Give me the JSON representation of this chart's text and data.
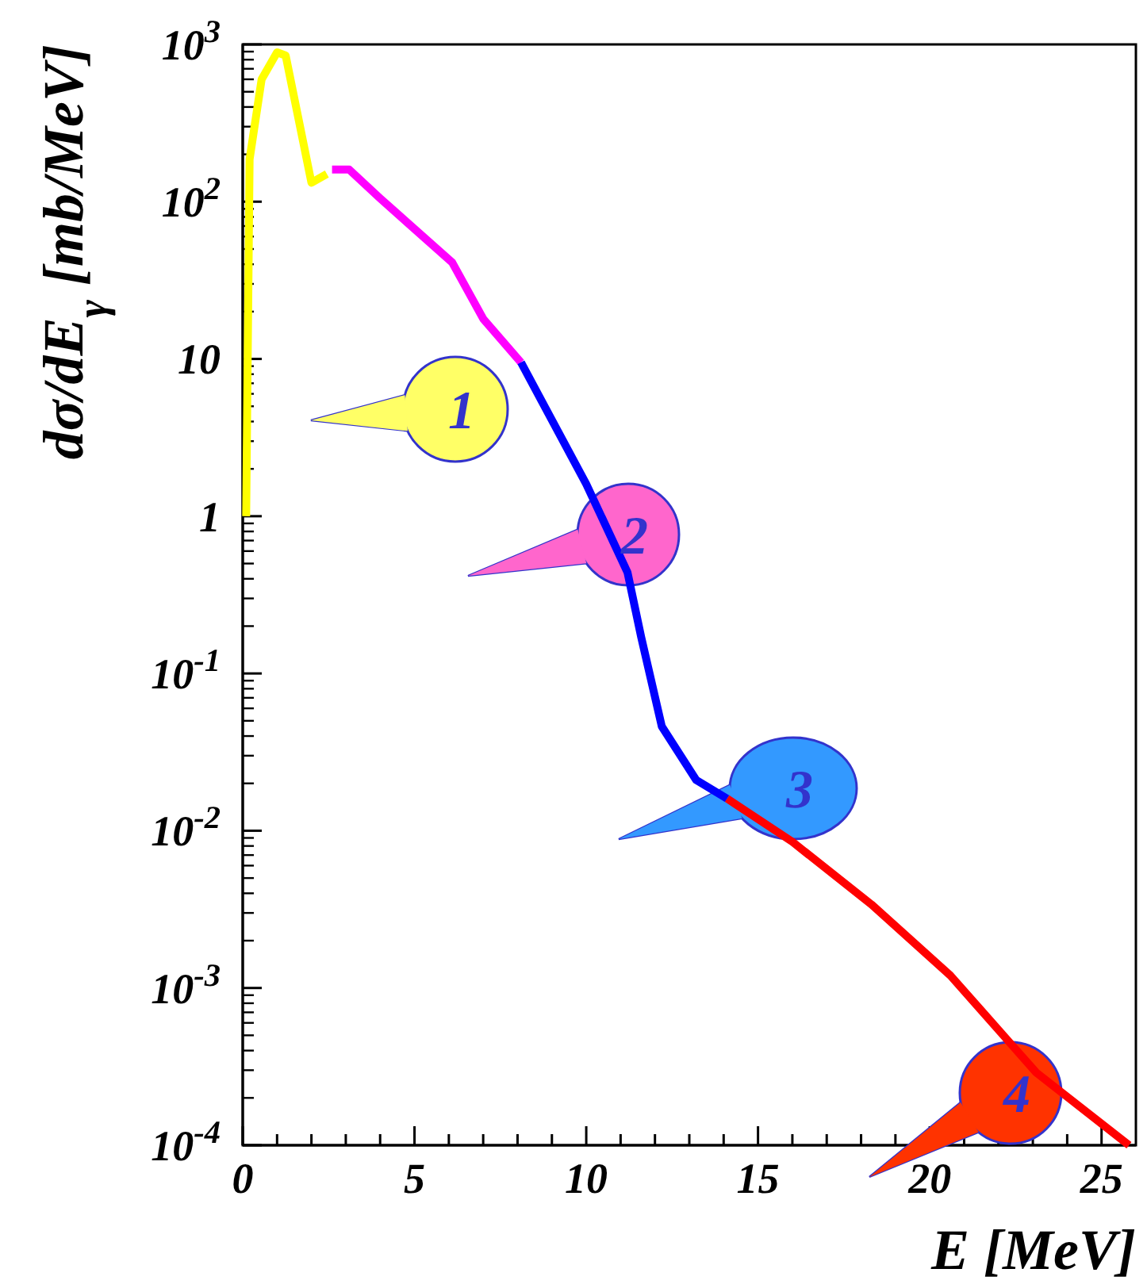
{
  "chart_data": {
    "type": "line",
    "xlabel": "E [MeV]",
    "ylabel": "dσ/dE$_{γ}$ [mb/MeV]",
    "log": "y",
    "line_style": "solid",
    "xlim": [
      0,
      26
    ],
    "ylim": [
      0.0001,
      1000
    ],
    "xticks": [
      0,
      {
        "value": 1,
        "label": null
      },
      {
        "value": 2,
        "label": null
      },
      {
        "value": 3,
        "label": null
      },
      {
        "value": 4,
        "label": null
      },
      5,
      {
        "value": 6,
        "label": null
      },
      {
        "value": 7,
        "label": null
      },
      {
        "value": 8,
        "label": null
      },
      {
        "value": 9,
        "label": null
      },
      10,
      {
        "value": 11,
        "label": null
      },
      {
        "value": 12,
        "label": null
      },
      {
        "value": 13,
        "label": null
      },
      {
        "value": 14,
        "label": null
      },
      15,
      {
        "value": 16,
        "label": null
      },
      {
        "value": 17,
        "label": null
      },
      {
        "value": 18,
        "label": null
      },
      {
        "value": 19,
        "label": null
      },
      20,
      {
        "value": 21,
        "label": null
      },
      {
        "value": 22,
        "label": null
      },
      {
        "value": 23,
        "label": null
      },
      {
        "value": 24,
        "label": null
      },
      25
    ],
    "yticks": [
      {
        "value": 0.0001,
        "label": "10$^{-4}$"
      },
      {
        "value": 0.001,
        "label": "10$^{-3}$"
      },
      {
        "value": 0.01,
        "label": "10$^{-2}$"
      },
      {
        "value": 0.1,
        "label": "10$^{-1}$"
      },
      1,
      10,
      {
        "value": 100,
        "label": "10$^{2}$"
      },
      {
        "value": 1000,
        "label": "10$^{3}$"
      }
    ],
    "series": [
      {
        "color": "#ffff00",
        "x": [
          0.1,
          0.2,
          0.55,
          1.0,
          1.25,
          2.0,
          2.45
        ],
        "values": [
          1,
          186,
          600,
          890,
          850,
          132,
          150
        ]
      },
      {
        "color": "#ff00ff",
        "x": [
          2.6,
          3.1,
          4.0,
          6.1,
          7.0,
          8.1
        ],
        "values": [
          160,
          160,
          105,
          41,
          18,
          9.5
        ]
      },
      {
        "color": "#0000ff",
        "x": [
          8.1,
          10.0,
          11.2,
          11.6,
          12.2,
          13.2,
          14.1
        ],
        "values": [
          9.5,
          1.6,
          0.44,
          0.17,
          0.046,
          0.021,
          0.016
        ]
      },
      {
        "color": "#ff0000",
        "x": [
          14.1,
          16.0,
          18.3,
          20.6,
          23.1,
          25.8
        ],
        "values": [
          0.016,
          0.0085,
          0.0034,
          0.0012,
          0.00029,
          0.0001
        ]
      }
    ],
    "annotations": [
      "1",
      "2",
      "3",
      "4"
    ]
  }
}
